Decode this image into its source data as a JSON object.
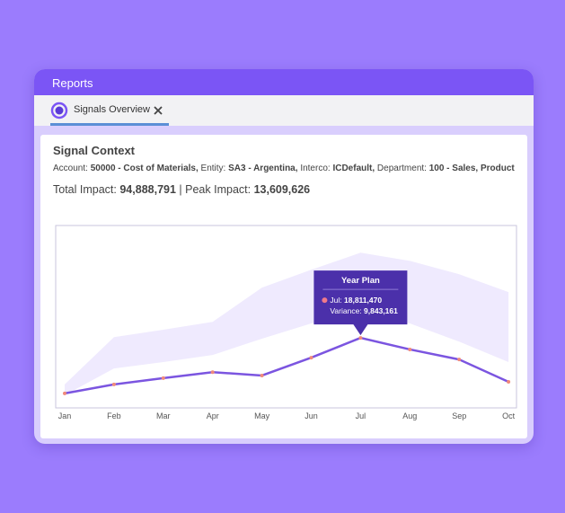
{
  "app": {
    "title": "Reports",
    "tab": "Signals Overview"
  },
  "context": {
    "heading": "Signal Context",
    "fields": [
      {
        "label": "Account:",
        "value": "50000 - Cost of Materials,"
      },
      {
        "label": "Entity:",
        "value": "SA3 - Argentina,"
      },
      {
        "label": "Interco:",
        "value": "ICDefault,"
      },
      {
        "label": "Department:",
        "value": "100 - Sales, Product"
      }
    ],
    "total_label": "Total Impact:",
    "total": "94,888,791",
    "separator": "|",
    "peak_label": "Peak Impact:",
    "peak": "13,609,626"
  },
  "chart_data": {
    "type": "line",
    "categories": [
      "Jan",
      "Feb",
      "Mar",
      "Apr",
      "May",
      "Jun",
      "Jul",
      "Aug",
      "Sep",
      "Oct"
    ],
    "series": [
      {
        "name": "Year Plan",
        "color": "#7b55e0",
        "values": [
          3900000,
          6300000,
          8000000,
          9600000,
          8700000,
          13500000,
          18811470,
          15700000,
          13000000,
          7000000
        ],
        "value_labels": [
          null,
          null,
          null,
          null,
          null,
          null,
          "18,811,470",
          null,
          null,
          null
        ]
      }
    ],
    "band": {
      "color": "#efeafe",
      "upper": [
        6300000,
        19000000,
        21000000,
        23100000,
        32300000,
        37100000,
        41700000,
        39500000,
        35900000,
        31100000
      ],
      "lower": [
        3400000,
        10600000,
        12300000,
        14200000,
        18600000,
        22700000,
        25500000,
        22700000,
        17800000,
        12300000
      ]
    },
    "ylim": [
      0,
      49000000
    ],
    "tooltip": {
      "category": 6,
      "variance_label": "Variance:",
      "variance": "9,843,161"
    }
  }
}
